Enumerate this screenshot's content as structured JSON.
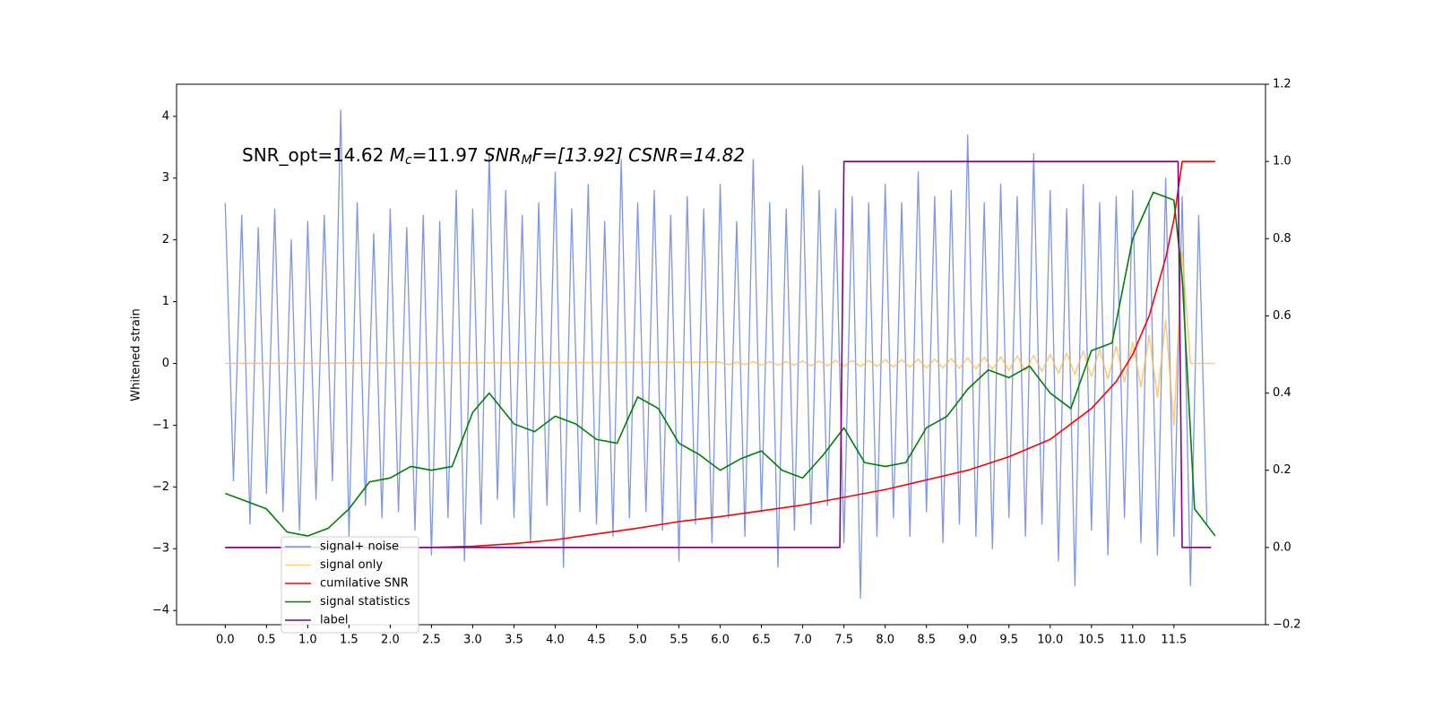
{
  "chart_data": {
    "type": "line",
    "annotation": [
      "SNR_opt=14.62 ",
      "M",
      "c",
      "=11.97 ",
      "SNR",
      "M",
      "F=[13.92] CSNR=14.82"
    ],
    "ylabel": "Whitened strain",
    "xlim": [
      -0.59,
      12.61
    ],
    "ylim": [
      -4.23,
      4.52
    ],
    "y2lim": [
      -0.2,
      1.2
    ],
    "xticks": [
      {
        "value": 0,
        "label": "0.0"
      },
      0.5,
      {
        "value": 1,
        "label": "1.0"
      },
      1.5,
      {
        "value": 2,
        "label": "2.0"
      },
      2.5,
      {
        "value": 3,
        "label": "3.0"
      },
      3.5,
      {
        "value": 4,
        "label": "4.0"
      },
      4.5,
      {
        "value": 5,
        "label": "5.0"
      },
      5.5,
      {
        "value": 6,
        "label": "6.0"
      },
      6.5,
      {
        "value": 7,
        "label": "7.0"
      },
      7.5,
      {
        "value": 8,
        "label": "8.0"
      },
      8.5,
      {
        "value": 9,
        "label": "9.0"
      },
      9.5,
      {
        "value": 10,
        "label": "10.0"
      },
      10.5,
      {
        "value": 11,
        "label": "11.0"
      },
      11.5
    ],
    "yticks": [
      {
        "value": -4,
        "label": "−4"
      },
      {
        "value": -3,
        "label": "−3"
      },
      {
        "value": -2,
        "label": "−2"
      },
      {
        "value": -1,
        "label": "−1"
      },
      0,
      1,
      2,
      3,
      4
    ],
    "y2ticks": [
      {
        "value": -0.2,
        "label": "−0.2"
      },
      {
        "value": 0,
        "label": "0.0"
      },
      0.2,
      0.4,
      0.6,
      0.8,
      {
        "value": 1,
        "label": "1.0"
      },
      1.2
    ],
    "series": [
      {
        "name": "signal+ noise",
        "color": "#7690e4",
        "x": [
          0,
          0.1,
          0.2,
          0.3,
          0.4,
          0.5,
          0.6,
          0.7,
          0.8,
          0.9,
          1,
          1.1,
          1.2,
          1.3,
          1.4,
          1.5,
          1.6,
          1.7,
          1.8,
          1.9,
          2,
          2.1,
          2.2,
          2.3,
          2.4,
          2.5,
          2.6,
          2.7,
          2.8,
          2.9,
          3,
          3.1,
          3.2,
          3.3,
          3.4,
          3.5,
          3.6,
          3.7,
          3.8,
          3.9,
          4,
          4.1,
          4.2,
          4.3,
          4.4,
          4.5,
          4.6,
          4.7,
          4.8,
          4.9,
          5,
          5.1,
          5.2,
          5.3,
          5.4,
          5.5,
          5.6,
          5.7,
          5.8,
          5.9,
          6,
          6.1,
          6.2,
          6.3,
          6.4,
          6.5,
          6.6,
          6.7,
          6.8,
          6.9,
          7,
          7.1,
          7.2,
          7.3,
          7.4,
          7.5,
          7.6,
          7.7,
          7.8,
          7.9,
          8,
          8.1,
          8.2,
          8.3,
          8.4,
          8.5,
          8.6,
          8.7,
          8.8,
          8.9,
          9,
          9.1,
          9.2,
          9.3,
          9.4,
          9.5,
          9.6,
          9.7,
          9.8,
          9.9,
          10,
          10.1,
          10.2,
          10.3,
          10.4,
          10.5,
          10.6,
          10.7,
          10.8,
          10.9,
          11,
          11.1,
          11.2,
          11.3,
          11.4,
          11.5,
          11.6,
          11.7,
          11.8,
          11.9
        ],
        "values": [
          2.6,
          -1.9,
          2.4,
          -2.6,
          2.2,
          -2.1,
          2.5,
          -2.4,
          2.0,
          -2.7,
          2.3,
          -2.2,
          2.4,
          -1.9,
          4.1,
          -2.8,
          2.6,
          -2.3,
          2.1,
          -2.5,
          2.5,
          -2.4,
          2.2,
          -2.7,
          2.4,
          -3.1,
          2.3,
          -2.5,
          2.8,
          -3.2,
          2.5,
          -2.6,
          3.4,
          -2.2,
          2.8,
          -2.5,
          2.4,
          -2.9,
          2.6,
          -2.3,
          3.1,
          -3.3,
          2.5,
          -2.4,
          2.9,
          -2.6,
          2.3,
          -2.8,
          3.3,
          -2.5,
          2.6,
          -2.4,
          2.8,
          -2.7,
          2.4,
          -3.2,
          2.7,
          -2.6,
          2.5,
          -2.9,
          2.9,
          -2.5,
          2.3,
          -2.8,
          3.3,
          -2.4,
          2.6,
          -3.3,
          2.5,
          -2.7,
          3.2,
          -2.6,
          2.8,
          -2.3,
          2.5,
          -2.9,
          2.7,
          -3.8,
          2.6,
          -2.8,
          2.9,
          -2.5,
          2.6,
          -2.8,
          3.1,
          -2.4,
          2.7,
          -2.9,
          2.8,
          -2.6,
          3.7,
          -2.8,
          2.6,
          -3.0,
          2.9,
          -2.5,
          2.7,
          -2.8,
          3.4,
          -2.6,
          2.8,
          -3.2,
          2.5,
          -3.6,
          2.9,
          -2.7,
          2.6,
          -3.1,
          2.7,
          -2.5,
          2.8,
          -2.9,
          2.6,
          -3.1,
          3.0,
          -2.8,
          2.7,
          -3.6,
          2.4,
          -2.6
        ]
      },
      {
        "name": "signal only",
        "color": "#ffb84d",
        "x": [
          0,
          6,
          6.1,
          6.2,
          6.3,
          6.4,
          6.5,
          6.6,
          6.7,
          6.8,
          6.9,
          7,
          7.1,
          7.2,
          7.3,
          7.4,
          7.5,
          7.6,
          7.7,
          7.8,
          7.9,
          8,
          8.1,
          8.2,
          8.3,
          8.4,
          8.5,
          8.6,
          8.7,
          8.8,
          8.9,
          9,
          9.1,
          9.2,
          9.3,
          9.4,
          9.5,
          9.6,
          9.7,
          9.8,
          9.9,
          10,
          10.1,
          10.2,
          10.3,
          10.4,
          10.5,
          10.6,
          10.7,
          10.8,
          10.9,
          11,
          11.1,
          11.2,
          11.3,
          11.4,
          11.5,
          11.6,
          11.7,
          12
        ],
        "values": [
          0,
          0.02,
          -0.02,
          0.02,
          -0.02,
          0.03,
          -0.03,
          0.03,
          -0.03,
          0.03,
          -0.03,
          0.04,
          -0.04,
          0.04,
          -0.04,
          0.05,
          -0.05,
          0.05,
          -0.05,
          0.05,
          -0.05,
          0.06,
          -0.06,
          0.06,
          -0.06,
          0.07,
          -0.07,
          0.07,
          -0.07,
          0.08,
          -0.08,
          0.09,
          -0.09,
          0.1,
          -0.1,
          0.11,
          -0.11,
          0.12,
          -0.12,
          0.13,
          -0.13,
          0.15,
          -0.16,
          0.17,
          -0.18,
          0.2,
          -0.21,
          0.23,
          -0.25,
          0.28,
          -0.3,
          0.34,
          -0.38,
          0.45,
          -0.55,
          0.7,
          -1.0,
          1.8,
          0,
          0
        ]
      },
      {
        "name": "cumilative SNR",
        "color": "#ff0000",
        "axis": "y2",
        "x": [
          0,
          2.5,
          3,
          3.5,
          4,
          4.5,
          5,
          5.5,
          6,
          6.5,
          7,
          7.5,
          8,
          8.5,
          9,
          9.5,
          10,
          10.5,
          10.8,
          11,
          11.2,
          11.4,
          11.5,
          11.6,
          11.7,
          12
        ],
        "values": [
          0,
          0,
          0.003,
          0.01,
          0.02,
          0.035,
          0.05,
          0.067,
          0.08,
          0.095,
          0.11,
          0.13,
          0.15,
          0.175,
          0.2,
          0.235,
          0.28,
          0.36,
          0.43,
          0.5,
          0.6,
          0.75,
          0.85,
          1.0,
          1.0,
          1.0
        ]
      },
      {
        "name": "signal statistics",
        "color": "#008000",
        "axis": "y2",
        "x": [
          0,
          0.25,
          0.5,
          0.75,
          1,
          1.25,
          1.5,
          1.75,
          2,
          2.25,
          2.5,
          2.75,
          3,
          3.2,
          3.5,
          3.75,
          4,
          4.25,
          4.5,
          4.75,
          5,
          5.25,
          5.5,
          5.75,
          6,
          6.25,
          6.5,
          6.75,
          7,
          7.25,
          7.5,
          7.75,
          8,
          8.25,
          8.5,
          8.75,
          9,
          9.25,
          9.5,
          9.75,
          10,
          10.25,
          10.5,
          10.75,
          11,
          11.25,
          11.5,
          11.6,
          11.75,
          12
        ],
        "values": [
          0.14,
          0.12,
          0.1,
          0.04,
          0.03,
          0.05,
          0.1,
          0.17,
          0.18,
          0.21,
          0.2,
          0.21,
          0.35,
          0.4,
          0.32,
          0.3,
          0.34,
          0.32,
          0.28,
          0.27,
          0.39,
          0.36,
          0.27,
          0.24,
          0.2,
          0.23,
          0.25,
          0.2,
          0.18,
          0.24,
          0.31,
          0.22,
          0.21,
          0.22,
          0.31,
          0.34,
          0.41,
          0.46,
          0.44,
          0.47,
          0.4,
          0.36,
          0.51,
          0.53,
          0.8,
          0.92,
          0.9,
          0.7,
          0.1,
          0.03
        ]
      },
      {
        "name": "label",
        "color": "#800080",
        "axis": "y2",
        "x": [
          0,
          7.45,
          7.5,
          11.55,
          11.6,
          11.95
        ],
        "values": [
          0,
          0,
          1,
          1,
          0,
          0
        ]
      }
    ]
  }
}
